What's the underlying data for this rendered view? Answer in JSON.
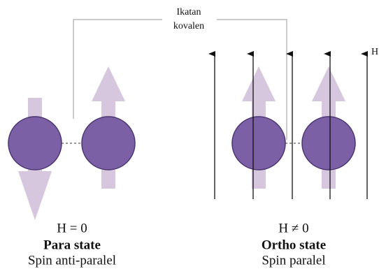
{
  "bond_label": [
    "Ikatan",
    "kovalen"
  ],
  "field_label": "H",
  "left": {
    "field": "H = 0",
    "state": "Para state",
    "spin": "Spin anti-paralel"
  },
  "right": {
    "field": "H ≠ 0",
    "state": "Ortho state",
    "spin": "Spin paralel"
  }
}
